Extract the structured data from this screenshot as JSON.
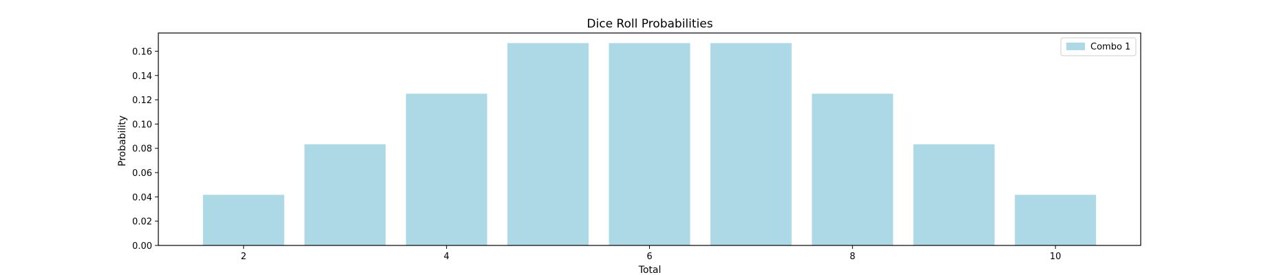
{
  "chart_data": {
    "type": "bar",
    "title": "Dice Roll Probabilities",
    "xlabel": "Total",
    "ylabel": "Probability",
    "categories": [
      2,
      3,
      4,
      5,
      6,
      7,
      8,
      9,
      10
    ],
    "series": [
      {
        "name": "Combo 1",
        "values": [
          0.0417,
          0.0833,
          0.125,
          0.1667,
          0.1667,
          0.1667,
          0.125,
          0.0833,
          0.0417
        ],
        "color": "#add8e6"
      }
    ],
    "xlim": [
      1.16,
      10.84
    ],
    "ylim": [
      0,
      0.175
    ],
    "xticks": [
      2,
      4,
      6,
      8,
      10
    ],
    "xtick_labels": [
      "2",
      "4",
      "6",
      "8",
      "10"
    ],
    "yticks": [
      0,
      0.02,
      0.04,
      0.06,
      0.08,
      0.1,
      0.12,
      0.14,
      0.16
    ],
    "ytick_labels": [
      "0.00",
      "0.02",
      "0.04",
      "0.06",
      "0.08",
      "0.10",
      "0.12",
      "0.14",
      "0.16"
    ],
    "bar_width": 0.8,
    "grid": false,
    "legend_position": "top-right"
  }
}
